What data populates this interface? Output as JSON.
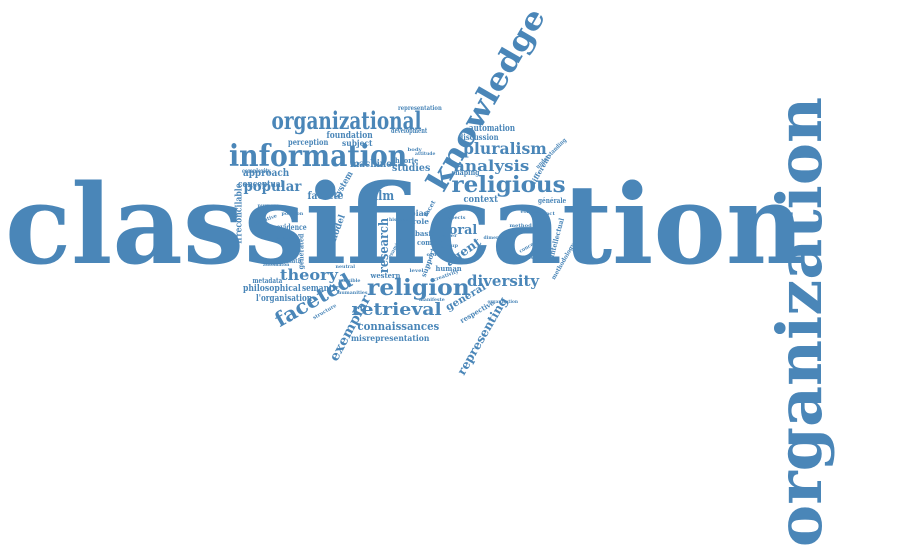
{
  "colors": {
    "background": "#ffffff",
    "word": "#4a86b8"
  },
  "words": [
    {
      "id": "classification",
      "text": "classification"
    },
    {
      "id": "organization",
      "text": "organization"
    },
    {
      "id": "knowledge",
      "text": "knowledge"
    },
    {
      "id": "information",
      "text": "information"
    },
    {
      "id": "organizational",
      "text": "organizational"
    },
    {
      "id": "religious",
      "text": "religious"
    },
    {
      "id": "religion",
      "text": "religion"
    },
    {
      "id": "retrieval",
      "text": "retrieval"
    },
    {
      "id": "faceted",
      "text": "faceted"
    },
    {
      "id": "diversity",
      "text": "diversity"
    },
    {
      "id": "theory",
      "text": "theory"
    },
    {
      "id": "pluralism",
      "text": "pluralism"
    },
    {
      "id": "analysis",
      "text": "analysis"
    },
    {
      "id": "popular",
      "text": "popular"
    },
    {
      "id": "exemplar",
      "text": "exemplar"
    },
    {
      "id": "representing",
      "text": "representing"
    },
    {
      "id": "moral",
      "text": "moral"
    },
    {
      "id": "research",
      "text": "research"
    },
    {
      "id": "connaissances",
      "text": "connaissances"
    },
    {
      "id": "misrepresentation",
      "text": "misrepresentation"
    },
    {
      "id": "film",
      "text": "film"
    },
    {
      "id": "agent",
      "text": "agent"
    },
    {
      "id": "general",
      "text": "general"
    },
    {
      "id": "facette",
      "text": "facette"
    },
    {
      "id": "studies",
      "text": "studies"
    },
    {
      "id": "machine",
      "text": "machine"
    },
    {
      "id": "approach",
      "text": "approach"
    },
    {
      "id": "conceptual",
      "text": "conceptual"
    },
    {
      "id": "foundation",
      "text": "foundation"
    },
    {
      "id": "perception",
      "text": "perception"
    },
    {
      "id": "subject",
      "text": "subject"
    },
    {
      "id": "automation",
      "text": "automation"
    },
    {
      "id": "discussion",
      "text": "discussion"
    },
    {
      "id": "development",
      "text": "development"
    },
    {
      "id": "representation",
      "text": "representation"
    },
    {
      "id": "context",
      "text": "context"
    },
    {
      "id": "shaping",
      "text": "shaping"
    },
    {
      "id": "philosophical",
      "text": "philosophical"
    },
    {
      "id": "semantic",
      "text": "semantic"
    },
    {
      "id": "lorganisation",
      "text": "l'organisation"
    },
    {
      "id": "metadata",
      "text": "metadata"
    },
    {
      "id": "western",
      "text": "western"
    },
    {
      "id": "evidence",
      "text": "evidence"
    },
    {
      "id": "irreconcilable",
      "text": "irreconcilable"
    },
    {
      "id": "generated",
      "text": "generated"
    },
    {
      "id": "model",
      "text": "model"
    },
    {
      "id": "system",
      "text": "system"
    },
    {
      "id": "theorie",
      "text": "théorie"
    },
    {
      "id": "bias",
      "text": "bias"
    },
    {
      "id": "role",
      "text": "role"
    },
    {
      "id": "basis",
      "text": "basis"
    },
    {
      "id": "human",
      "text": "human"
    },
    {
      "id": "comme",
      "text": "comme"
    },
    {
      "id": "support",
      "text": "support"
    },
    {
      "id": "respective",
      "text": "respective"
    },
    {
      "id": "generale",
      "text": "générale"
    },
    {
      "id": "different",
      "text": "different"
    },
    {
      "id": "intellectual",
      "text": "intellectual"
    },
    {
      "id": "methodology",
      "text": "methodology"
    },
    {
      "id": "understanding",
      "text": "understanding"
    },
    {
      "id": "complexity",
      "text": "complexity"
    },
    {
      "id": "automatic",
      "text": "automatic"
    },
    {
      "id": "humanities",
      "text": "humanities"
    },
    {
      "id": "attitude",
      "text": "attitude"
    },
    {
      "id": "structure",
      "text": "structure"
    },
    {
      "id": "possible",
      "text": "possible"
    },
    {
      "id": "manifeste",
      "text": "manifeste"
    },
    {
      "id": "paper",
      "text": "paper"
    },
    {
      "id": "group",
      "text": "group"
    },
    {
      "id": "creativity",
      "text": "creativity"
    },
    {
      "id": "order",
      "text": "order"
    },
    {
      "id": "method",
      "text": "method"
    },
    {
      "id": "distinct",
      "text": "distinct"
    },
    {
      "id": "purpose",
      "text": "purpose"
    },
    {
      "id": "present",
      "text": "present"
    },
    {
      "id": "negative",
      "text": "negative"
    },
    {
      "id": "position",
      "text": "position"
    },
    {
      "id": "automaton",
      "text": "automaton"
    },
    {
      "id": "concepts",
      "text": "concepts"
    },
    {
      "id": "intention",
      "text": "intention"
    },
    {
      "id": "examine",
      "text": "examine"
    },
    {
      "id": "aspects",
      "text": "aspects"
    },
    {
      "id": "hisbias",
      "text": "his bias"
    },
    {
      "id": "level",
      "text": "level"
    },
    {
      "id": "body",
      "text": "body"
    },
    {
      "id": "facet",
      "text": "facet"
    },
    {
      "id": "relations",
      "text": "relations"
    },
    {
      "id": "dimension",
      "text": "dimension"
    },
    {
      "id": "ethics",
      "text": "ethics"
    },
    {
      "id": "organisation",
      "text": "organisation"
    },
    {
      "id": "neutral",
      "text": "neutral"
    }
  ]
}
